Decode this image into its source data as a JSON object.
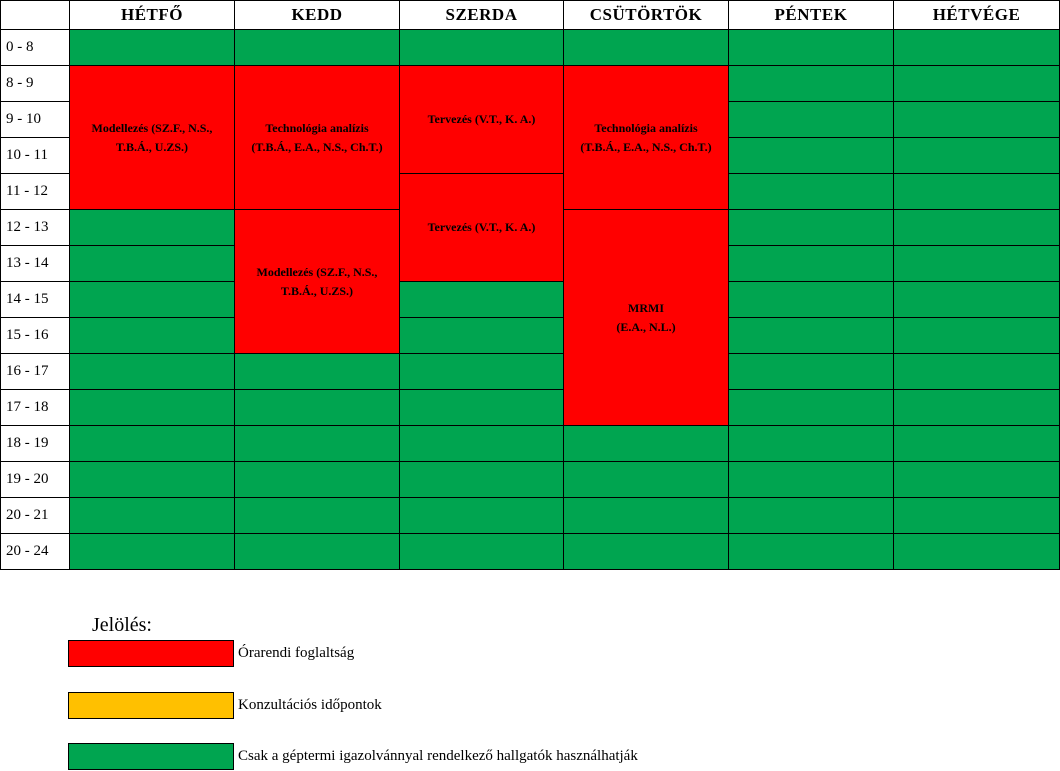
{
  "headers": [
    "HÉTFŐ",
    "KEDD",
    "SZERDA",
    "CSÜTÖRTÖK",
    "PÉNTEK",
    "HÉTVÉGE"
  ],
  "time_slots": [
    "0 -  8",
    "8 -  9",
    "9 - 10",
    "10 - 11",
    "11 - 12",
    "12 - 13",
    "13 - 14",
    "14 - 15",
    "15 - 16",
    "16 - 17",
    "17 - 18",
    "18 - 19",
    "19 - 20",
    "20 - 21",
    "20 - 24"
  ],
  "status_colors": {
    "busy": "#ff0000",
    "consultation": "#ffc000",
    "free": "#00a550"
  },
  "blocks": [
    {
      "day": 0,
      "start": 1,
      "span": 4,
      "line1": "Modellezés (SZ.F., N.S.,",
      "line2": "T.B.Á., U.ZS.)"
    },
    {
      "day": 1,
      "start": 1,
      "span": 4,
      "line1": "Technológia analízis",
      "line2": "(T.B.Á., E.A., N.S., Ch.T.)"
    },
    {
      "day": 1,
      "start": 5,
      "span": 4,
      "line1": "Modellezés (SZ.F., N.S.,",
      "line2": "T.B.Á., U.ZS.)"
    },
    {
      "day": 2,
      "start": 1,
      "span": 3,
      "line1": "Tervezés (V.T., K. A.)",
      "line2": ""
    },
    {
      "day": 2,
      "start": 4,
      "span": 3,
      "line1": "Tervezés (V.T., K. A.)",
      "line2": ""
    },
    {
      "day": 3,
      "start": 1,
      "span": 4,
      "line1": "Technológia analízis",
      "line2": "(T.B.Á., E.A., N.S., Ch.T.)"
    },
    {
      "day": 3,
      "start": 5,
      "span": 6,
      "line1": "MRMI",
      "line2": "(E.A., N.L.)"
    }
  ],
  "legend": {
    "title": "Jelölés:",
    "items": [
      {
        "label": "Órarendi foglaltság",
        "color": "#ff0000"
      },
      {
        "label": "Konzultációs időpontok",
        "color": "#ffc000"
      },
      {
        "label": "Csak a géptermi igazolvánnyal rendelkező hallgatók használhatják",
        "color": "#00a550"
      }
    ]
  }
}
